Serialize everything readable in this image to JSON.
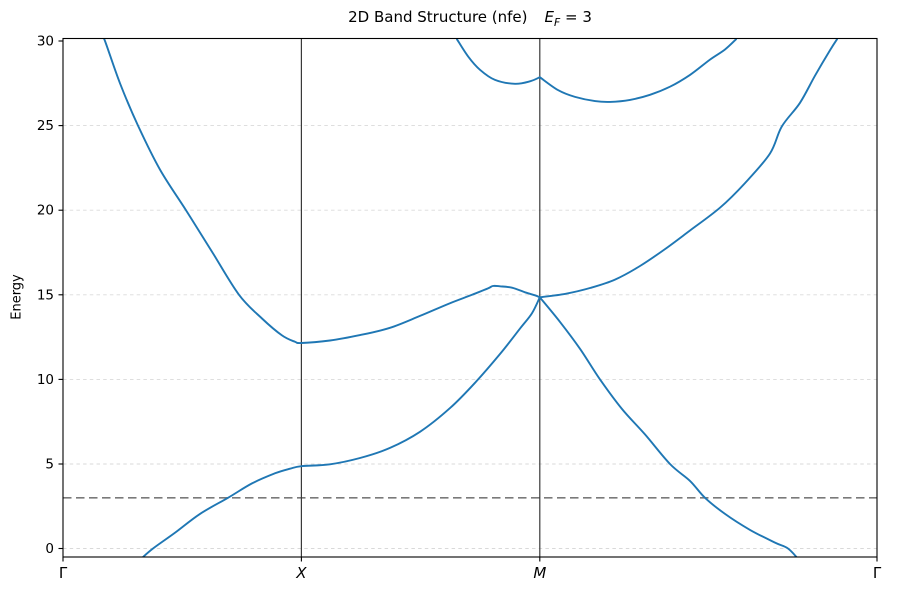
{
  "title": {
    "main": "2D Band Structure (nfe)",
    "fermi_symbol": "E",
    "fermi_subscript": "F",
    "fermi_eq": " = 3"
  },
  "chart_data": {
    "type": "line",
    "title": "2D Band Structure (nfe)  E_F = 3",
    "ylabel": "Energy",
    "xlabel": "",
    "fermi_energy": 3,
    "ylim": [
      -0.5,
      30.15
    ],
    "yticks": [
      0,
      5,
      10,
      15,
      20,
      25,
      30
    ],
    "grid_levels": [
      0,
      5,
      10,
      15,
      20,
      25
    ],
    "grid_on": true,
    "kpath": {
      "labels": [
        "Γ",
        "X",
        "M",
        "Γ"
      ],
      "positions": [
        0,
        0.29289,
        0.58579,
        1
      ],
      "italic": [
        false,
        true,
        true,
        false
      ]
    },
    "colors": {
      "band": "#1f77b4",
      "fermi_line": "#7a7a7a",
      "gridline": "#d9d9d9",
      "kpoint_line": "#3a3a3a",
      "axes": "#000000"
    },
    "fermi_line": {
      "value": 3,
      "style": "dashed"
    },
    "key_values": {
      "band1_at_X": 4.87,
      "band2_at_X": 12.15,
      "bands12_crossing_at_M": 14.85,
      "band2_hump_max_XM": 15.55,
      "band3_cusp_at_M": 27.86,
      "band3_min_MG": 26.4,
      "band3_min_XM": 27.47
    },
    "bands": [
      {
        "name": "band-1",
        "paths": [
          [
            [
              0.096,
              -0.6
            ],
            [
              0.1106,
              0.0
            ],
            [
              0.138,
              0.95
            ],
            [
              0.1683,
              2.05
            ],
            [
              0.2027,
              3.0
            ],
            [
              0.2322,
              3.85
            ],
            [
              0.2604,
              4.45
            ],
            [
              0.2789,
              4.72
            ],
            [
              0.29289,
              4.87
            ],
            [
              0.328,
              4.98
            ],
            [
              0.3649,
              5.35
            ],
            [
              0.4017,
              5.95
            ],
            [
              0.4386,
              6.9
            ],
            [
              0.4754,
              8.3
            ],
            [
              0.5061,
              9.8
            ],
            [
              0.5368,
              11.5
            ],
            [
              0.5614,
              13.0
            ],
            [
              0.5761,
              13.9
            ],
            [
              0.58579,
              14.85
            ]
          ],
          [
            [
              0.58579,
              14.85
            ],
            [
              0.6106,
              13.4
            ],
            [
              0.6352,
              11.8
            ],
            [
              0.6597,
              10.0
            ],
            [
              0.6867,
              8.25
            ],
            [
              0.715,
              6.75
            ],
            [
              0.7457,
              5.0
            ],
            [
              0.7703,
              4.0
            ],
            [
              0.7887,
              3.0
            ],
            [
              0.8133,
              2.05
            ],
            [
              0.844,
              1.1
            ],
            [
              0.8747,
              0.35
            ],
            [
              0.8907,
              0.0
            ],
            [
              0.9029,
              -0.6
            ]
          ]
        ]
      },
      {
        "name": "band-2",
        "paths": [
          [
            [
              0.0455,
              30.6
            ],
            [
              0.0516,
              30.0
            ],
            [
              0.07,
              27.5
            ],
            [
              0.0921,
              25.0
            ],
            [
              0.1192,
              22.4
            ],
            [
              0.1511,
              20.0
            ],
            [
              0.183,
              17.55
            ],
            [
              0.2162,
              15.0
            ],
            [
              0.2445,
              13.6
            ],
            [
              0.269,
              12.6
            ],
            [
              0.285,
              12.22
            ],
            [
              0.29289,
              12.15
            ],
            [
              0.328,
              12.3
            ],
            [
              0.3649,
              12.62
            ],
            [
              0.4017,
              13.05
            ],
            [
              0.4386,
              13.75
            ],
            [
              0.4754,
              14.5
            ],
            [
              0.5025,
              15.0
            ],
            [
              0.5221,
              15.38
            ],
            [
              0.528,
              15.52
            ],
            [
              0.5368,
              15.5
            ],
            [
              0.5516,
              15.42
            ],
            [
              0.5676,
              15.15
            ],
            [
              0.5799,
              14.97
            ],
            [
              0.58579,
              14.85
            ]
          ],
          [
            [
              0.58579,
              14.85
            ],
            [
              0.6167,
              15.05
            ],
            [
              0.6474,
              15.4
            ],
            [
              0.6781,
              15.9
            ],
            [
              0.7088,
              16.7
            ],
            [
              0.7395,
              17.7
            ],
            [
              0.7703,
              18.8
            ],
            [
              0.8071,
              20.15
            ],
            [
              0.8378,
              21.6
            ],
            [
              0.8686,
              23.35
            ],
            [
              0.883,
              24.95
            ],
            [
              0.9054,
              26.35
            ],
            [
              0.9238,
              27.95
            ],
            [
              0.9423,
              29.45
            ],
            [
              0.9509,
              30.1
            ]
          ]
        ]
      },
      {
        "name": "band-3",
        "paths": [
          [
            [
              0.484,
              30.1
            ],
            [
              0.4975,
              29.1
            ],
            [
              0.5123,
              28.3
            ],
            [
              0.5307,
              27.7
            ],
            [
              0.5553,
              27.47
            ],
            [
              0.5737,
              27.62
            ],
            [
              0.58579,
              27.86
            ]
          ],
          [
            [
              0.58579,
              27.86
            ],
            [
              0.6081,
              27.1
            ],
            [
              0.629,
              26.7
            ],
            [
              0.6536,
              26.45
            ],
            [
              0.672,
              26.4
            ],
            [
              0.6966,
              26.52
            ],
            [
              0.7211,
              26.82
            ],
            [
              0.7457,
              27.3
            ],
            [
              0.7703,
              28.0
            ],
            [
              0.7948,
              28.9
            ],
            [
              0.8133,
              29.5
            ],
            [
              0.8268,
              30.1
            ]
          ]
        ]
      }
    ]
  }
}
